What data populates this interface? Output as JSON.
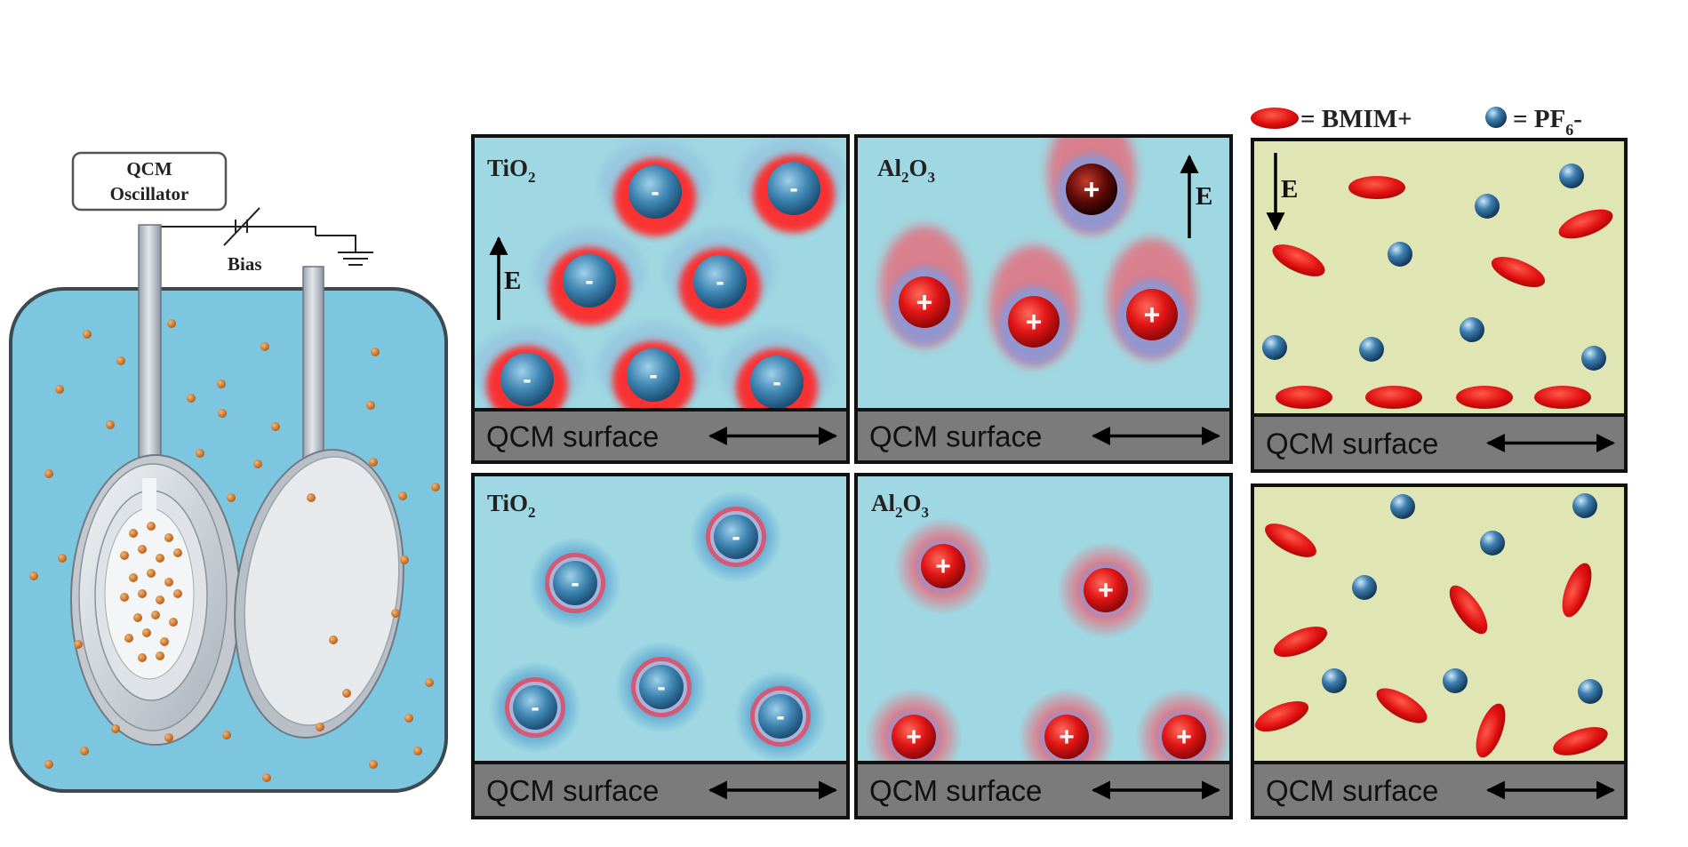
{
  "apparatus": {
    "oscillator_label_line1": "QCM",
    "oscillator_label_line2": "Oscillator",
    "bias_label": "Bias"
  },
  "legend": {
    "bmim_label": "= BMIM+",
    "pf6_label": "= PF",
    "pf6_subscript": "6",
    "pf6_suffix": "-"
  },
  "panels": {
    "tio2_top": {
      "title": "TiO",
      "title_sub": "2",
      "field": "E",
      "anion_sign": "-"
    },
    "al2o3_top": {
      "title": "Al",
      "title_sub1": "2",
      "title_mid": "O",
      "title_sub2": "3",
      "field": "E",
      "cation_sign": "+"
    },
    "il_top": {
      "field": "E"
    },
    "tio2_bottom": {
      "title": "TiO",
      "title_sub": "2"
    },
    "al2o3_bottom": {
      "title": "Al",
      "title_sub1": "2",
      "title_mid": "O",
      "title_sub2": "3"
    },
    "surface_label": "QCM surface"
  },
  "colors": {
    "solution": "#7cc7df",
    "panel_bg": "#9fd8e2",
    "il_bg": "#dfe6b4",
    "surface_bar": "#7b7b7b",
    "cation": "#e01515",
    "anion": "#3b7fa8"
  }
}
